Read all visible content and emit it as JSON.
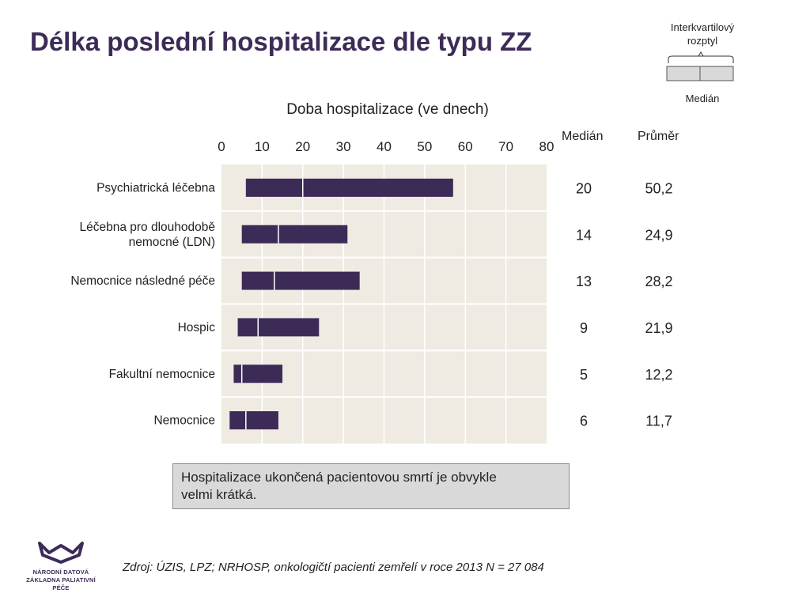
{
  "title": "Délka poslední hospitalizace dle typu ZZ",
  "legend": {
    "top_label_line1": "Interkvartilový",
    "top_label_line2": "rozptyl",
    "bottom_label": "Medián"
  },
  "columns": {
    "median": "Medián",
    "mean": "Průměr"
  },
  "callout_lines": [
    "Hospitalizace ukončená pacientovou smrtí je obvykle",
    "velmi krátká."
  ],
  "source": "Zdroj: ÚZIS, LPZ; NRHOSP, onkologičtí pacienti zemřelí v roce 2013 N = 27 084",
  "logo": {
    "line1": "NÁRODNÍ DATOVÁ",
    "line2": "ZÁKLADNA PALIATIVNÍ PÉČE"
  },
  "colors": {
    "bar": "#3d2b57",
    "plot_bg": "#efebe2",
    "title": "#3d2b57",
    "callout_bg": "#d9d9d9"
  },
  "chart_data": {
    "type": "bar",
    "orientation": "horizontal",
    "xlabel": "Doba hospitalizace (ve dnech)",
    "xlim": [
      0,
      80
    ],
    "xticks": [
      0,
      10,
      20,
      30,
      40,
      50,
      60,
      70,
      80
    ],
    "categories": [
      [
        "Psychiatrická léčebna"
      ],
      [
        "Léčebna pro dlouhodobě",
        "nemocné (LDN)"
      ],
      [
        "Nemocnice následné péče"
      ],
      [
        "Hospic"
      ],
      [
        "Fakultní nemocnice"
      ],
      [
        "Nemocnice"
      ]
    ],
    "q1": [
      6,
      5,
      5,
      4,
      3,
      2
    ],
    "q3": [
      57,
      31,
      34,
      24,
      15,
      14
    ],
    "median_position": [
      20,
      14,
      13,
      9,
      5,
      6
    ],
    "median_label": [
      "20",
      "14",
      "13",
      "9",
      "5",
      "6"
    ],
    "mean_label": [
      "50,2",
      "24,9",
      "28,2",
      "21,9",
      "12,2",
      "11,7"
    ],
    "grid": true
  }
}
